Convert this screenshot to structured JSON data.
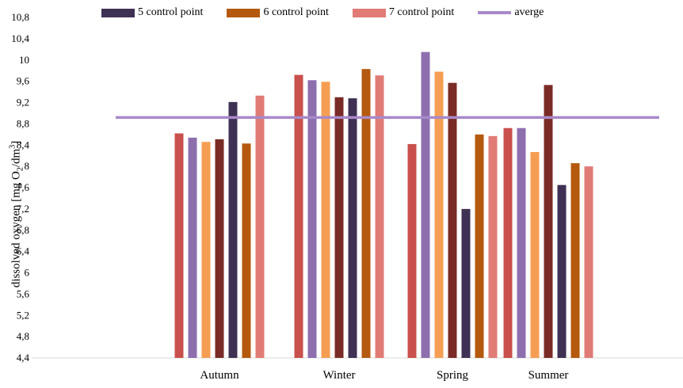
{
  "chart_data": {
    "type": "bar",
    "title": "",
    "ylabel_parts": [
      "dissolved oxygen [mg O",
      "2",
      "/dm",
      "3",
      "]"
    ],
    "xlabel": "",
    "ylim": [
      4.4,
      10.8
    ],
    "yticks": [
      "4,4",
      "4,8",
      "5,2",
      "5,6",
      "6",
      "6,4",
      "6,8",
      "7,2",
      "7,6",
      "8",
      "8,4",
      "8,8",
      "9,2",
      "9,6",
      "10",
      "10,4",
      "10,8"
    ],
    "categories": [
      "Autumn",
      "Winter",
      "Spring",
      "Summer"
    ],
    "bar_colors": [
      "#c9504c",
      "#8e6fae",
      "#f59e53",
      "#7a2b26",
      "#3f3153",
      "#b4590d",
      "#e07b76"
    ],
    "values": [
      [
        8.62,
        8.54,
        8.46,
        8.51,
        9.21,
        8.43,
        9.33
      ],
      [
        9.72,
        9.62,
        9.59,
        9.3,
        9.28,
        9.83,
        9.71
      ],
      [
        8.42,
        10.15,
        9.78,
        9.57,
        7.2,
        8.6,
        8.57
      ],
      [
        8.72,
        8.72,
        8.27,
        9.53,
        7.65,
        8.06,
        8.0
      ]
    ],
    "average": 8.92,
    "legend": [
      {
        "label": "5 control point",
        "color": "#3f3153",
        "kind": "bar"
      },
      {
        "label": "6 control point",
        "color": "#b4590d",
        "kind": "bar"
      },
      {
        "label": "7 control point",
        "color": "#e07b76",
        "kind": "bar"
      },
      {
        "label": "averge",
        "color": "#a88ac9",
        "kind": "line"
      }
    ]
  }
}
